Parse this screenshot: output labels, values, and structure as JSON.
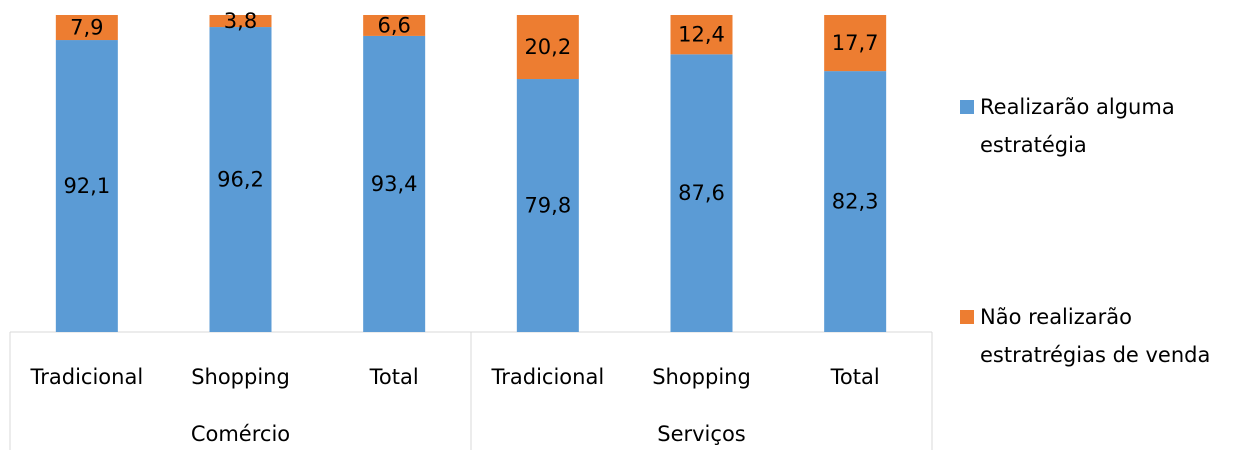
{
  "chart_data": {
    "type": "stacked_bar",
    "groups": [
      {
        "name": "Comércio",
        "categories": [
          "Tradicional",
          "Shopping",
          "Total"
        ]
      },
      {
        "name": "Serviços",
        "categories": [
          "Tradicional",
          "Shopping",
          "Total"
        ]
      }
    ],
    "series": [
      {
        "name": "Realizarão alguma estratégia",
        "color": "#5b9bd5",
        "values": [
          92.1,
          96.2,
          93.4,
          79.8,
          87.6,
          82.3
        ],
        "value_labels": [
          "92,1",
          "96,2",
          "93,4",
          "79,8",
          "87,6",
          "82,3"
        ]
      },
      {
        "name": "Não realizarão estratrégias de venda",
        "color": "#ed7d31",
        "values": [
          7.9,
          3.8,
          6.6,
          20.2,
          12.4,
          17.7
        ],
        "value_labels": [
          "7,9",
          "3,8",
          "6,6",
          "20,2",
          "12,4",
          "17,7"
        ]
      }
    ],
    "ylim": [
      0,
      100
    ],
    "legend": "right"
  }
}
